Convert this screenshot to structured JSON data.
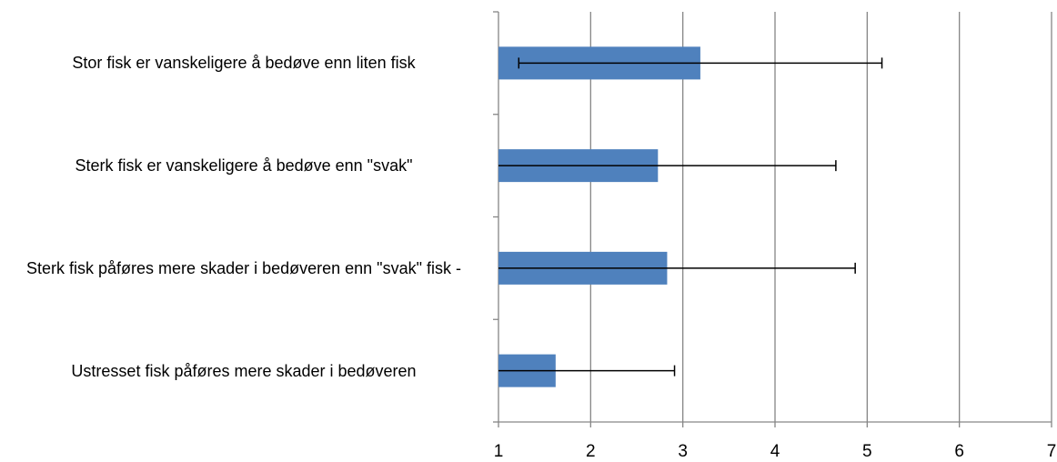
{
  "chart_data": {
    "type": "bar",
    "orientation": "horizontal",
    "categories": [
      "Stor fisk er vanskeligere å bedøve enn liten fisk",
      "Sterk fisk er vanskeligere å bedøve enn \"svak\"",
      "Sterk fisk påføres mere skader i bedøveren enn \"svak\" fisk -",
      "Ustresset fisk påføres mere skader i bedøveren"
    ],
    "values": [
      3.19,
      2.73,
      2.83,
      1.62
    ],
    "errors": [
      1.97,
      1.93,
      2.04,
      1.29
    ],
    "color": "#4f81bd",
    "error_color": "#000000",
    "xlim": [
      1,
      7
    ],
    "xticks": [
      1,
      2,
      3,
      4,
      5,
      6,
      7
    ],
    "grid": true
  }
}
